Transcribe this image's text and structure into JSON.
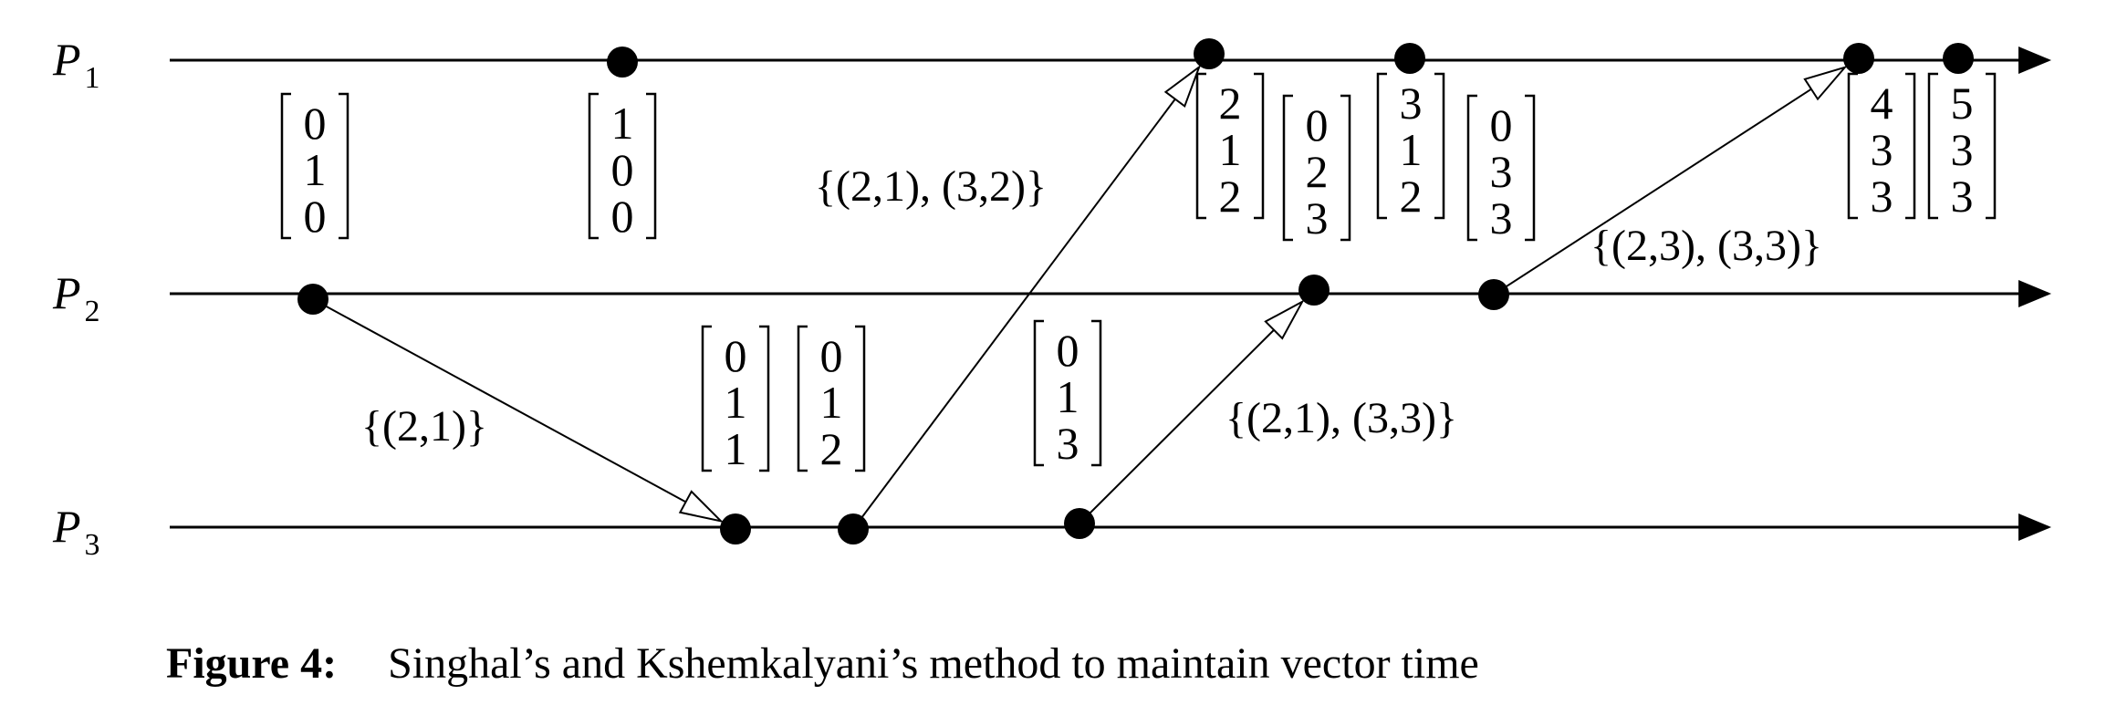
{
  "processes": [
    {
      "id": "P1",
      "letter": "P",
      "sub": "1"
    },
    {
      "id": "P2",
      "letter": "P",
      "sub": "2"
    },
    {
      "id": "P3",
      "letter": "P",
      "sub": "3"
    }
  ],
  "events": [
    {
      "id": "e2a",
      "process": "P2"
    },
    {
      "id": "e1a",
      "process": "P1"
    },
    {
      "id": "e3a",
      "process": "P3"
    },
    {
      "id": "e3b",
      "process": "P3"
    },
    {
      "id": "e3c",
      "process": "P3"
    },
    {
      "id": "e1b",
      "process": "P1"
    },
    {
      "id": "e2b",
      "process": "P2"
    },
    {
      "id": "e1c",
      "process": "P1"
    },
    {
      "id": "e2c",
      "process": "P2"
    },
    {
      "id": "e1d",
      "process": "P1"
    },
    {
      "id": "e1e",
      "process": "P1"
    }
  ],
  "vectors": [
    {
      "event": "e2a",
      "values": [
        "0",
        "1",
        "0"
      ]
    },
    {
      "event": "e1a",
      "values": [
        "1",
        "0",
        "0"
      ]
    },
    {
      "event": "e3a",
      "values": [
        "0",
        "1",
        "1"
      ]
    },
    {
      "event": "e3b",
      "values": [
        "0",
        "1",
        "2"
      ]
    },
    {
      "event": "e3c",
      "values": [
        "0",
        "1",
        "3"
      ]
    },
    {
      "event": "e1b",
      "values": [
        "2",
        "1",
        "2"
      ]
    },
    {
      "event": "e2b",
      "values": [
        "0",
        "2",
        "3"
      ]
    },
    {
      "event": "e1c",
      "values": [
        "3",
        "1",
        "2"
      ]
    },
    {
      "event": "e2c",
      "values": [
        "0",
        "3",
        "3"
      ]
    },
    {
      "event": "e1d",
      "values": [
        "4",
        "3",
        "3"
      ]
    },
    {
      "event": "e1e",
      "values": [
        "5",
        "3",
        "3"
      ]
    }
  ],
  "messages": [
    {
      "from": "e2a",
      "to": "e3a",
      "label": "{(2,1)}"
    },
    {
      "from": "e3b",
      "to": "e1b",
      "label": "{(2,1), (3,2)}"
    },
    {
      "from": "e3c",
      "to": "e2b",
      "label": "{(2,1), (3,3)}"
    },
    {
      "from": "e2c",
      "to": "e1d",
      "label": "{(2,3), (3,3)}"
    }
  ],
  "caption": {
    "figure": "Figure 4:",
    "text": "Singhal’s and Kshemkalyani’s method to maintain vector time"
  }
}
